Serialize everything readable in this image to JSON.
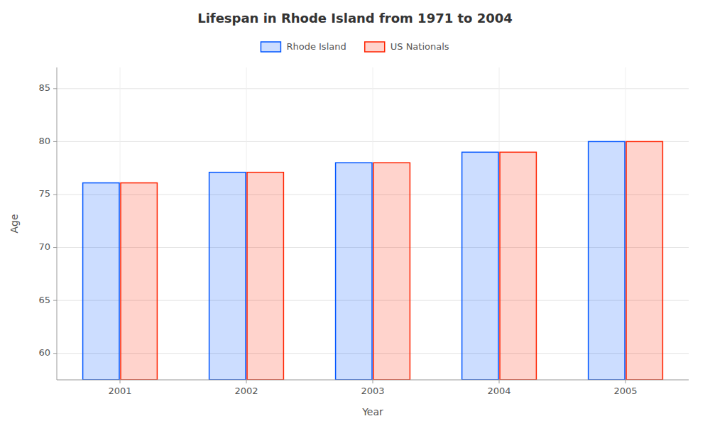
{
  "chart_data": {
    "type": "bar",
    "title": "Lifespan in Rhode Island from 1971 to 2004",
    "x_label": "Year",
    "y_label": "Age",
    "categories": [
      "2001",
      "2002",
      "2003",
      "2004",
      "2005"
    ],
    "series": [
      {
        "name": "Rhode Island",
        "color": "#0055ff",
        "values": [
          76.1,
          77.1,
          78.0,
          79.0,
          80.0
        ]
      },
      {
        "name": "US Nationals",
        "color": "#ff2200",
        "values": [
          76.1,
          77.1,
          78.0,
          79.0,
          80.0
        ]
      }
    ],
    "ylim": [
      57.5,
      87
    ],
    "yticks": [
      60,
      65,
      70,
      75,
      80,
      85
    ],
    "grid": true,
    "legend": "top"
  }
}
